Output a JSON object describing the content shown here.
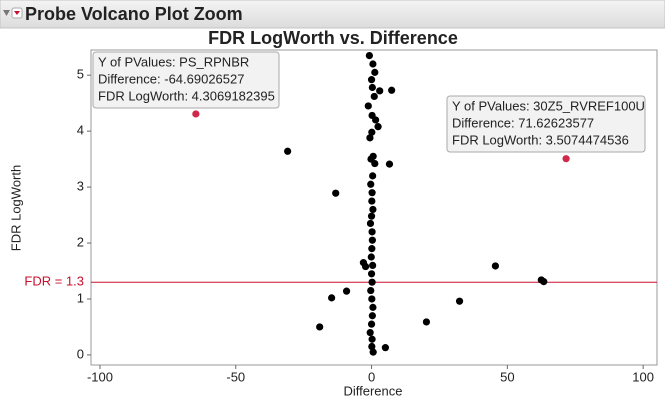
{
  "header": {
    "title": "Probe Volcano Plot Zoom"
  },
  "chart_data": {
    "type": "scatter",
    "title": "FDR LogWorth vs. Difference",
    "x_label": "Difference",
    "y_label": "FDR LogWorth",
    "xlim": [
      -103.3,
      105.1
    ],
    "ylim": [
      -0.18,
      5.45
    ],
    "xticks": [
      -100,
      -50,
      0,
      50,
      100
    ],
    "yticks": [
      0,
      1,
      2,
      3,
      4,
      5
    ],
    "series": [
      {
        "color": "#000000",
        "x": [
          -30.9,
          -13.2,
          -9.2,
          -14.7,
          -19.1,
          -3,
          -2.2,
          5.1,
          20.2,
          32.4,
          45.6,
          62.5,
          63.4,
          6.6,
          7.4,
          3,
          -0.8,
          0.5,
          1.2,
          0,
          0.3,
          1,
          -1.2,
          0.2,
          1.5,
          2.4,
          0.1,
          -0.6,
          0.6,
          -0.2,
          1.2,
          0.4,
          -0.3,
          0.2,
          0.1,
          0.5,
          0,
          -0.4,
          0.2,
          0.3,
          0.1,
          -0.1,
          0.4,
          0,
          0.2,
          -0.3,
          0.1,
          0.5,
          0.3,
          0,
          -0.5,
          0.2,
          0.1,
          0.6
        ],
        "values": [
          3.64,
          2.89,
          1.14,
          1.02,
          0.5,
          1.65,
          1.58,
          0.13,
          0.59,
          0.96,
          1.59,
          1.34,
          1.31,
          3.41,
          4.73,
          4.72,
          5.35,
          5.2,
          5.05,
          4.92,
          4.78,
          4.62,
          4.45,
          4.28,
          4.2,
          4.08,
          3.98,
          3.88,
          3.55,
          3.5,
          3.42,
          3.2,
          3.05,
          2.9,
          2.75,
          2.6,
          2.48,
          2.35,
          2.2,
          2.05,
          1.9,
          1.75,
          1.6,
          1.45,
          1.3,
          1.15,
          1.0,
          0.85,
          0.7,
          0.55,
          0.4,
          0.28,
          0.15,
          0.05
        ]
      },
      {
        "color": "#d0284a",
        "x": [
          -64.69026527,
          71.62623577
        ],
        "values": [
          4.3069182395,
          3.5074474536
        ]
      }
    ],
    "reference_lines": [
      {
        "value": 1.3,
        "label": "FDR = 1.3",
        "color": "#c8102e"
      }
    ],
    "annotations": [
      {
        "lines": [
          "Y of PValues: PS_RPNBR",
          "Difference: -64.69026527",
          "FDR LogWorth: 4.3069182395"
        ]
      },
      {
        "lines": [
          "Y of PValues: 30Z5_RVREF100U",
          "Difference: 71.62623577",
          "FDR LogWorth: 3.5074474536"
        ]
      }
    ]
  }
}
